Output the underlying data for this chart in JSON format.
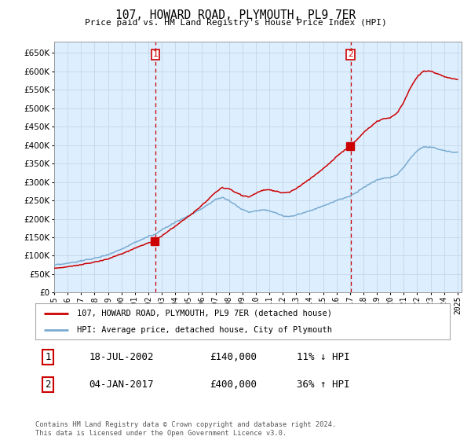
{
  "title": "107, HOWARD ROAD, PLYMOUTH, PL9 7ER",
  "subtitle": "Price paid vs. HM Land Registry's House Price Index (HPI)",
  "legend_line1": "107, HOWARD ROAD, PLYMOUTH, PL9 7ER (detached house)",
  "legend_line2": "HPI: Average price, detached house, City of Plymouth",
  "annotation1_label": "1",
  "annotation1_date": "18-JUL-2002",
  "annotation1_price": "£140,000",
  "annotation1_hpi": "11% ↓ HPI",
  "annotation2_label": "2",
  "annotation2_date": "04-JAN-2017",
  "annotation2_price": "£400,000",
  "annotation2_hpi": "36% ↑ HPI",
  "footnote": "Contains HM Land Registry data © Crown copyright and database right 2024.\nThis data is licensed under the Open Government Licence v3.0.",
  "red_line_color": "#cc0000",
  "blue_line_color": "#7aabcf",
  "grid_color": "#c8daea",
  "plot_bg_color": "#ddeeff",
  "annotation_vline_color": "#cc0000",
  "ylim": [
    0,
    680000
  ],
  "yticks": [
    0,
    50000,
    100000,
    150000,
    200000,
    250000,
    300000,
    350000,
    400000,
    450000,
    500000,
    550000,
    600000,
    650000
  ],
  "purchase1_year": 2002.54,
  "purchase1_price": 140000,
  "purchase2_year": 2017.04,
  "purchase2_price": 400000
}
